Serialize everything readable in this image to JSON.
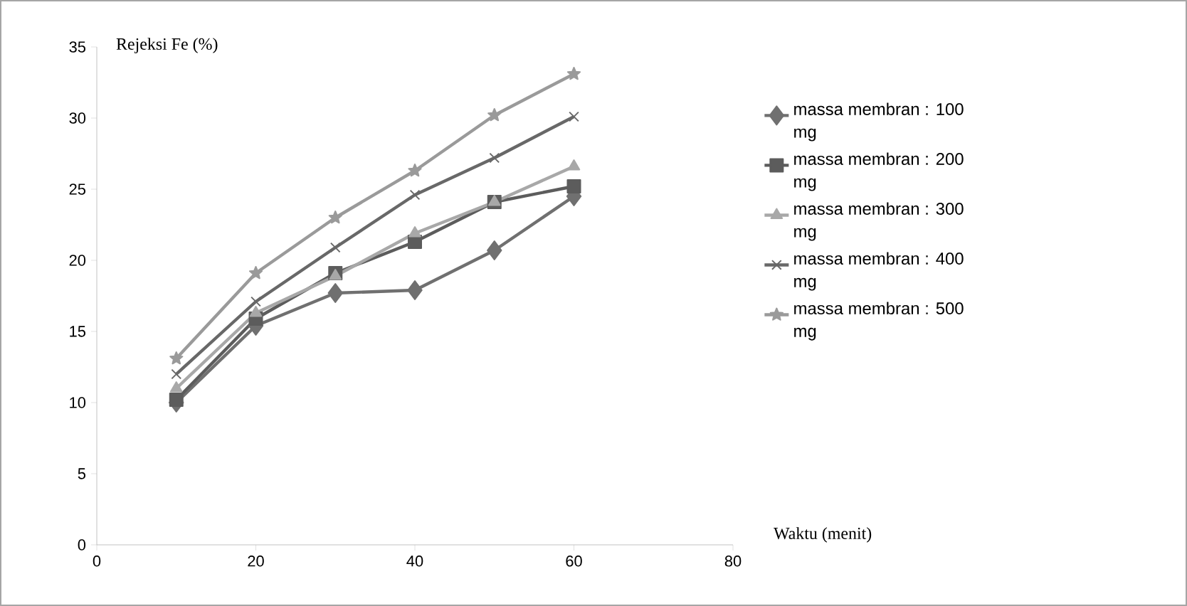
{
  "chart_data": {
    "type": "line",
    "ylabel": "Rejeksi Fe (%)",
    "xlabel": "Waktu (menit)",
    "x": [
      10,
      20,
      30,
      40,
      50,
      60
    ],
    "series": [
      {
        "name": "massa membran : 100 mg",
        "color": "#707070",
        "marker": "diamond",
        "values": [
          10.0,
          15.4,
          17.7,
          17.9,
          20.7,
          24.5
        ]
      },
      {
        "name": "massa membran : 200 mg",
        "color": "#5c5c5c",
        "marker": "square",
        "values": [
          10.2,
          15.9,
          19.1,
          21.3,
          24.1,
          25.2
        ]
      },
      {
        "name": "massa membran : 300 mg",
        "color": "#a8a8a8",
        "marker": "triangle",
        "values": [
          11.0,
          16.3,
          18.9,
          21.9,
          24.1,
          26.6
        ]
      },
      {
        "name": "massa membran : 400 mg",
        "color": "#686868",
        "marker": "cross",
        "values": [
          12.0,
          17.1,
          20.9,
          24.6,
          27.2,
          30.1
        ]
      },
      {
        "name": "massa membran : 500 mg",
        "color": "#9a9a9a",
        "marker": "star",
        "values": [
          13.1,
          19.1,
          23.0,
          26.3,
          30.2,
          33.1
        ]
      }
    ],
    "xlim": [
      0,
      80
    ],
    "xticks": [
      0,
      20,
      40,
      60,
      80
    ],
    "ylim": [
      0,
      35
    ],
    "yticks": [
      0,
      5,
      10,
      15,
      20,
      25,
      30,
      35
    ],
    "grid": false,
    "legend": "right"
  }
}
